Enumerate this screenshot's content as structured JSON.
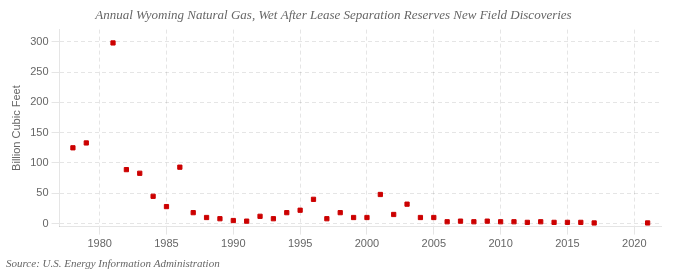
{
  "chart_data": {
    "type": "scatter",
    "title": "Annual Wyoming Natural Gas, Wet After Lease Separation Reserves New Field Discoveries",
    "ylabel": "Billion Cubic Feet",
    "source": "Source: U.S. Energy Information Administration",
    "color": "#cc0000",
    "marker": "square",
    "grid": true,
    "xlim": [
      1977,
      2022
    ],
    "ylim": [
      -5,
      320
    ],
    "xticks": [
      1980,
      1985,
      1990,
      1995,
      2000,
      2005,
      2010,
      2015,
      2020
    ],
    "yticks": [
      0,
      50,
      100,
      150,
      200,
      250,
      300
    ],
    "x": [
      1978,
      1979,
      1981,
      1982,
      1983,
      1984,
      1985,
      1986,
      1987,
      1988,
      1989,
      1990,
      1991,
      1992,
      1993,
      1994,
      1995,
      1996,
      1997,
      1998,
      1999,
      2000,
      2001,
      2002,
      2003,
      2004,
      2005,
      2006,
      2007,
      2008,
      2009,
      2010,
      2011,
      2012,
      2013,
      2014,
      2015,
      2016,
      2017,
      2021
    ],
    "values": [
      125,
      133,
      298,
      89,
      83,
      45,
      28,
      93,
      18,
      10,
      8,
      5,
      4,
      12,
      8,
      18,
      22,
      40,
      8,
      18,
      10,
      10,
      48,
      15,
      32,
      10,
      10,
      3,
      4,
      3,
      4,
      3,
      3,
      2,
      3,
      2,
      2,
      2,
      1,
      1
    ]
  }
}
